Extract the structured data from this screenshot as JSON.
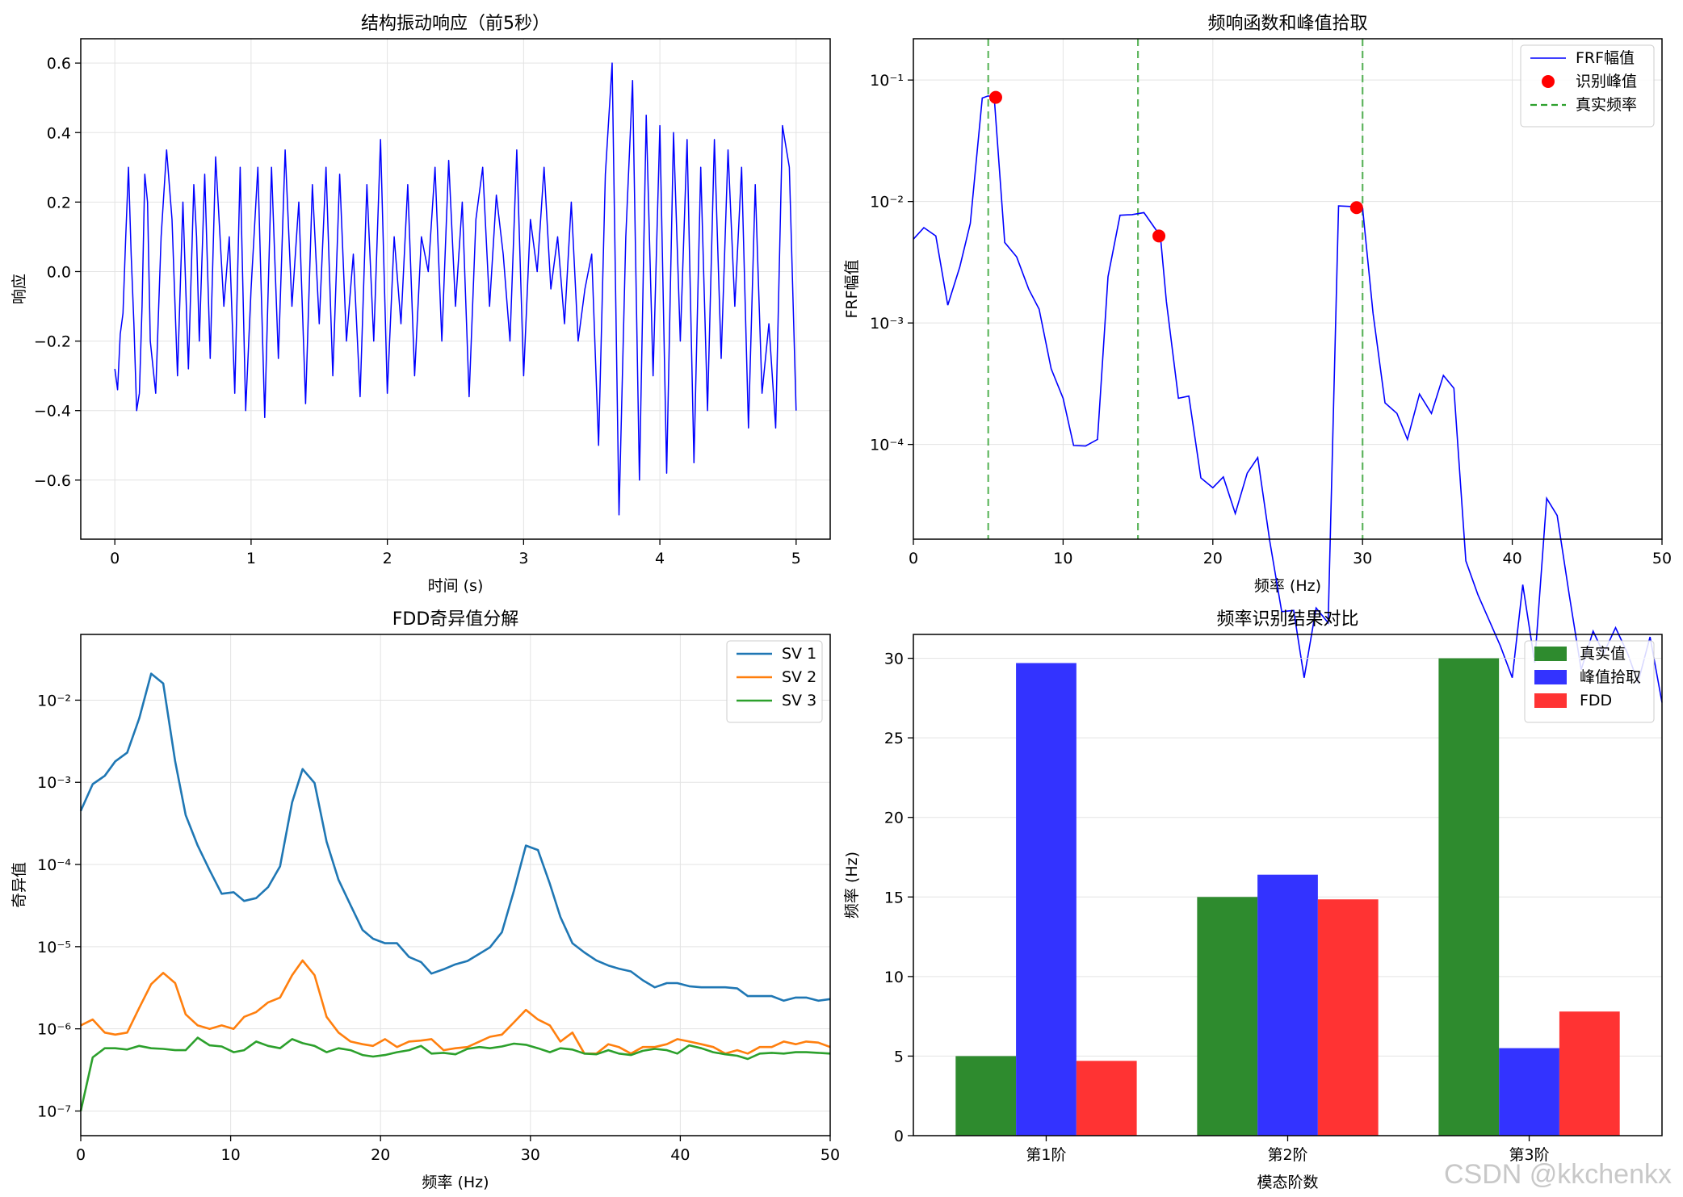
{
  "watermark": "CSDN @kkchenkx",
  "chart_data": [
    {
      "id": "response",
      "type": "line",
      "title": "结构振动响应（前5秒）",
      "xlabel": "时间 (s)",
      "ylabel": "响应",
      "xlim": [
        -0.25,
        5.25
      ],
      "ylim": [
        -0.77,
        0.67
      ],
      "xticks": [
        0,
        1,
        2,
        3,
        4,
        5
      ],
      "yticks": [
        -0.6,
        -0.4,
        -0.2,
        0.0,
        0.2,
        0.4,
        0.6
      ],
      "ytick_labels": [
        "−0.6",
        "−0.4",
        "−0.2",
        "0.0",
        "0.2",
        "0.4",
        "0.6"
      ],
      "grid": true,
      "series": [
        {
          "name": "response",
          "color": "#0000ff",
          "x": [
            0.0,
            0.02,
            0.04,
            0.06,
            0.08,
            0.1,
            0.12,
            0.14,
            0.16,
            0.18,
            0.2,
            0.22,
            0.24,
            0.26,
            0.3,
            0.34,
            0.38,
            0.42,
            0.46,
            0.5,
            0.54,
            0.58,
            0.6,
            0.62,
            0.66,
            0.7,
            0.74,
            0.8,
            0.84,
            0.88,
            0.92,
            0.96,
            1.0,
            1.05,
            1.1,
            1.15,
            1.2,
            1.25,
            1.3,
            1.35,
            1.4,
            1.45,
            1.5,
            1.55,
            1.6,
            1.65,
            1.7,
            1.75,
            1.8,
            1.85,
            1.9,
            1.95,
            2.0,
            2.05,
            2.1,
            2.15,
            2.2,
            2.25,
            2.3,
            2.35,
            2.4,
            2.45,
            2.5,
            2.55,
            2.6,
            2.65,
            2.7,
            2.75,
            2.8,
            2.85,
            2.9,
            2.95,
            3.0,
            3.05,
            3.1,
            3.15,
            3.2,
            3.25,
            3.3,
            3.35,
            3.4,
            3.45,
            3.5,
            3.55,
            3.6,
            3.65,
            3.7,
            3.75,
            3.8,
            3.85,
            3.9,
            3.95,
            4.0,
            4.05,
            4.1,
            4.15,
            4.2,
            4.25,
            4.3,
            4.35,
            4.4,
            4.45,
            4.5,
            4.55,
            4.6,
            4.65,
            4.7,
            4.75,
            4.8,
            4.85,
            4.9,
            4.95,
            5.0
          ],
          "y": [
            -0.28,
            -0.34,
            -0.18,
            -0.12,
            0.1,
            0.3,
            0.05,
            -0.15,
            -0.4,
            -0.35,
            -0.1,
            0.28,
            0.2,
            -0.2,
            -0.35,
            0.1,
            0.35,
            0.15,
            -0.3,
            0.2,
            -0.28,
            0.25,
            0.1,
            -0.2,
            0.28,
            -0.25,
            0.33,
            -0.1,
            0.1,
            -0.35,
            0.3,
            -0.4,
            -0.05,
            0.3,
            -0.42,
            0.3,
            -0.25,
            0.35,
            -0.1,
            0.2,
            -0.38,
            0.25,
            -0.15,
            0.3,
            -0.3,
            0.28,
            -0.2,
            0.05,
            -0.36,
            0.25,
            -0.2,
            0.38,
            -0.35,
            0.1,
            -0.15,
            0.25,
            -0.3,
            0.1,
            0.0,
            0.3,
            -0.2,
            0.32,
            -0.1,
            0.2,
            -0.36,
            0.15,
            0.3,
            -0.1,
            0.22,
            0.05,
            -0.2,
            0.35,
            -0.3,
            0.15,
            0.0,
            0.3,
            -0.05,
            0.1,
            -0.15,
            0.2,
            -0.2,
            -0.05,
            0.05,
            -0.5,
            0.28,
            0.6,
            -0.7,
            0.1,
            0.55,
            -0.6,
            0.45,
            -0.3,
            0.42,
            -0.58,
            0.4,
            -0.2,
            0.38,
            -0.55,
            0.3,
            -0.4,
            0.38,
            -0.25,
            0.35,
            -0.1,
            0.3,
            -0.45,
            0.25,
            -0.35,
            -0.15,
            -0.45,
            0.42,
            0.3,
            -0.4
          ]
        }
      ]
    },
    {
      "id": "frf",
      "type": "line",
      "yscale": "log",
      "title": "频响函数和峰值拾取",
      "xlabel": "频率 (Hz)",
      "ylabel": "FRF幅值",
      "xlim": [
        0,
        50
      ],
      "ylim_log10": [
        -4.78,
        -0.66
      ],
      "xticks": [
        0,
        10,
        20,
        30,
        40,
        50
      ],
      "ytick_exponents": [
        -1,
        -2,
        -3,
        -4
      ],
      "ytick_labels": [
        "10⁻¹",
        "10⁻²",
        "10⁻³",
        "10⁻⁴"
      ],
      "grid": true,
      "legend": {
        "position": "top-right",
        "entries": [
          "FRF幅值",
          "识别峰值",
          "真实频率"
        ]
      },
      "series": [
        {
          "name": "FRF幅值",
          "color": "#0000ff",
          "x": [
            0,
            0.7,
            1.5,
            2.3,
            3.1,
            3.8,
            4.6,
            5.0,
            5.4,
            6.1,
            6.9,
            7.7,
            8.4,
            9.2,
            10.0,
            10.7,
            11.5,
            12.3,
            13.0,
            13.8,
            14.6,
            15.4,
            16.1,
            16.5,
            16.9,
            17.7,
            18.4,
            19.2,
            20.0,
            20.7,
            21.5,
            22.3,
            23.0,
            23.8,
            24.6,
            25.4,
            26.1,
            26.9,
            27.7,
            28.4,
            29.2,
            30.0,
            30.7,
            31.5,
            32.3,
            33.0,
            33.8,
            34.6,
            35.4,
            36.1,
            36.9,
            37.7,
            38.4,
            39.2,
            40.0,
            40.7,
            41.5,
            42.3,
            43.0,
            43.8,
            44.6,
            45.4,
            46.1,
            46.9,
            47.7,
            48.4,
            49.2,
            50.0
          ],
          "y": [
            0.0049,
            0.0061,
            0.0052,
            0.0014,
            0.0029,
            0.0066,
            0.071,
            0.074,
            0.072,
            0.0046,
            0.0035,
            0.0019,
            0.0013,
            0.00042,
            0.00024,
            9.8e-05,
            9.7e-05,
            0.00011,
            0.0024,
            0.0077,
            0.0078,
            0.0081,
            0.0061,
            0.0052,
            0.0015,
            0.00024,
            0.00025,
            5.3e-05,
            4.4e-05,
            5.4e-05,
            2.7e-05,
            5.8e-05,
            7.8e-05,
            1.6e-05,
            4.2e-06,
            4.3e-06,
            1.2e-06,
            4.5e-06,
            3.4e-06,
            0.0092,
            0.0091,
            0.0089,
            0.0012,
            0.00022,
            0.00018,
            0.00011,
            0.00026,
            0.00018,
            0.00037,
            0.00029,
            1.1e-05,
            5.8e-06,
            3.7e-06,
            2.2e-06,
            1.2e-06,
            7e-06,
            1.6e-06,
            3.6e-05,
            2.6e-05,
            5.8e-06,
            1.4e-06,
            2.9e-06,
            1.9e-06,
            3.1e-06,
            1.9e-06,
            1.1e-06,
            2.6e-06,
            7.5e-07
          ]
        },
        {
          "name": "识别峰值",
          "color": "#ff0000",
          "marker": "o",
          "x": [
            5.5,
            16.4,
            29.6
          ],
          "y": [
            0.072,
            0.0052,
            0.0089
          ]
        },
        {
          "name": "真实频率",
          "color": "#2ca02c",
          "style": "dashed",
          "vlines": [
            5,
            15,
            30
          ]
        }
      ]
    },
    {
      "id": "fdd",
      "type": "line",
      "yscale": "log",
      "title": "FDD奇异值分解",
      "xlabel": "频率 (Hz)",
      "ylabel": "奇异值",
      "xlim": [
        0,
        50
      ],
      "ylim_log10": [
        -7.3,
        -1.2
      ],
      "xticks": [
        0,
        10,
        20,
        30,
        40,
        50
      ],
      "ytick_exponents": [
        -2,
        -3,
        -4,
        -5,
        -6,
        -7
      ],
      "ytick_labels": [
        "10⁻²",
        "10⁻³",
        "10⁻⁴",
        "10⁻⁵",
        "10⁻⁶",
        "10⁻⁷"
      ],
      "grid": true,
      "legend": {
        "position": "top-right",
        "entries": [
          "SV 1",
          "SV 2",
          "SV 3"
        ]
      },
      "series": [
        {
          "name": "SV 1",
          "color": "#1f77b4",
          "x": [
            0,
            0.8,
            1.6,
            2.3,
            3.1,
            3.9,
            4.7,
            5.5,
            6.3,
            7.0,
            7.8,
            8.6,
            9.4,
            10.2,
            10.9,
            11.7,
            12.5,
            13.3,
            14.1,
            14.8,
            15.6,
            16.4,
            17.2,
            18.0,
            18.8,
            19.5,
            20.3,
            21.1,
            21.9,
            22.7,
            23.4,
            24.2,
            25.0,
            25.8,
            26.6,
            27.3,
            28.1,
            28.9,
            29.7,
            30.5,
            31.3,
            32.0,
            32.8,
            33.6,
            34.4,
            35.2,
            35.9,
            36.7,
            37.5,
            38.3,
            39.1,
            39.8,
            40.6,
            41.4,
            42.2,
            43.0,
            43.8,
            44.5,
            45.3,
            46.1,
            46.9,
            47.7,
            48.4,
            49.2,
            50.0
          ],
          "y": [
            0.00045,
            0.00095,
            0.0012,
            0.0018,
            0.0023,
            0.006,
            0.021,
            0.016,
            0.0018,
            0.0004,
            0.00017,
            8.5e-05,
            4.4e-05,
            4.6e-05,
            3.6e-05,
            3.9e-05,
            5.3e-05,
            9.5e-05,
            0.00057,
            0.00145,
            0.00098,
            0.00019,
            6.5e-05,
            3.2e-05,
            1.6e-05,
            1.25e-05,
            1.1e-05,
            1.1e-05,
            7.5e-06,
            6.5e-06,
            4.7e-06,
            5.3e-06,
            6.1e-06,
            6.7e-06,
            8.2e-06,
            9.8e-06,
            1.5e-05,
            4.8e-05,
            0.00017,
            0.00015,
            5.8e-05,
            2.3e-05,
            1.1e-05,
            8.5e-06,
            6.8e-06,
            5.9e-06,
            5.4e-06,
            5e-06,
            3.9e-06,
            3.2e-06,
            3.6e-06,
            3.6e-06,
            3.3e-06,
            3.2e-06,
            3.2e-06,
            3.2e-06,
            3.1e-06,
            2.5e-06,
            2.5e-06,
            2.5e-06,
            2.2e-06,
            2.4e-06,
            2.4e-06,
            2.2e-06,
            2.3e-06
          ]
        },
        {
          "name": "SV 2",
          "color": "#ff7f0e",
          "x": [
            0,
            0.8,
            1.6,
            2.3,
            3.1,
            3.9,
            4.7,
            5.5,
            6.3,
            7.0,
            7.8,
            8.6,
            9.4,
            10.2,
            10.9,
            11.7,
            12.5,
            13.3,
            14.1,
            14.8,
            15.6,
            16.4,
            17.2,
            18.0,
            18.8,
            19.5,
            20.3,
            21.1,
            21.9,
            22.7,
            23.4,
            24.2,
            25.0,
            25.8,
            26.6,
            27.3,
            28.1,
            28.9,
            29.7,
            30.5,
            31.3,
            32.0,
            32.8,
            33.6,
            34.4,
            35.2,
            35.9,
            36.7,
            37.5,
            38.3,
            39.1,
            39.8,
            40.6,
            41.4,
            42.2,
            43.0,
            43.8,
            44.5,
            45.3,
            46.1,
            46.9,
            47.7,
            48.4,
            49.2,
            50.0
          ],
          "y": [
            1.1e-06,
            1.3e-06,
            9e-07,
            8.5e-07,
            9e-07,
            1.8e-06,
            3.5e-06,
            4.8e-06,
            3.6e-06,
            1.5e-06,
            1.1e-06,
            1e-06,
            1.1e-06,
            1e-06,
            1.4e-06,
            1.6e-06,
            2.1e-06,
            2.4e-06,
            4.5e-06,
            6.8e-06,
            4.5e-06,
            1.4e-06,
            9e-07,
            7e-07,
            6.5e-07,
            6.2e-07,
            7.5e-07,
            6e-07,
            7e-07,
            7.2e-07,
            7.5e-07,
            5.5e-07,
            5.8e-07,
            6e-07,
            7e-07,
            8e-07,
            8.5e-07,
            1.2e-06,
            1.7e-06,
            1.3e-06,
            1.1e-06,
            7e-07,
            9e-07,
            5e-07,
            5e-07,
            6.5e-07,
            6e-07,
            5e-07,
            6e-07,
            6e-07,
            6.5e-07,
            7.5e-07,
            7e-07,
            6.5e-07,
            6e-07,
            5e-07,
            5.5e-07,
            5e-07,
            6e-07,
            6e-07,
            7e-07,
            6.5e-07,
            7e-07,
            6.8e-07,
            6e-07
          ]
        },
        {
          "name": "SV 3",
          "color": "#2ca02c",
          "x": [
            0,
            0.8,
            1.6,
            2.3,
            3.1,
            3.9,
            4.7,
            5.5,
            6.3,
            7.0,
            7.8,
            8.6,
            9.4,
            10.2,
            10.9,
            11.7,
            12.5,
            13.3,
            14.1,
            14.8,
            15.6,
            16.4,
            17.2,
            18.0,
            18.8,
            19.5,
            20.3,
            21.1,
            21.9,
            22.7,
            23.4,
            24.2,
            25.0,
            25.8,
            26.6,
            27.3,
            28.1,
            28.9,
            29.7,
            30.5,
            31.3,
            32.0,
            32.8,
            33.6,
            34.4,
            35.2,
            35.9,
            36.7,
            37.5,
            38.3,
            39.1,
            39.8,
            40.6,
            41.4,
            42.2,
            43.0,
            43.8,
            44.5,
            45.3,
            46.1,
            46.9,
            47.7,
            48.4,
            49.2,
            50.0
          ],
          "y": [
            1e-07,
            4.5e-07,
            5.8e-07,
            5.8e-07,
            5.6e-07,
            6.2e-07,
            5.8e-07,
            5.7e-07,
            5.5e-07,
            5.5e-07,
            7.8e-07,
            6.3e-07,
            6.1e-07,
            5.2e-07,
            5.5e-07,
            7e-07,
            6.2e-07,
            5.8e-07,
            7.5e-07,
            6.7e-07,
            6.2e-07,
            5.2e-07,
            5.8e-07,
            5.5e-07,
            4.8e-07,
            4.6e-07,
            4.8e-07,
            5.2e-07,
            5.5e-07,
            6.2e-07,
            5e-07,
            5.1e-07,
            4.9e-07,
            5.7e-07,
            6e-07,
            5.8e-07,
            6.1e-07,
            6.6e-07,
            6.4e-07,
            5.8e-07,
            5.2e-07,
            5.8e-07,
            5.6e-07,
            5e-07,
            4.9e-07,
            5.5e-07,
            5e-07,
            4.8e-07,
            5.4e-07,
            5.7e-07,
            5.5e-07,
            5e-07,
            6.3e-07,
            5.8e-07,
            5.2e-07,
            4.9e-07,
            4.7e-07,
            4.3e-07,
            5e-07,
            5.1e-07,
            5e-07,
            5.2e-07,
            5.2e-07,
            5.1e-07,
            5e-07
          ]
        }
      ]
    },
    {
      "id": "compare",
      "type": "bar",
      "title": "频率识别结果对比",
      "xlabel": "模态阶数",
      "ylabel": "频率 (Hz)",
      "ylim": [
        0,
        31.5
      ],
      "yticks": [
        0,
        5,
        10,
        15,
        20,
        25,
        30
      ],
      "categories": [
        "第1阶",
        "第2阶",
        "第3阶"
      ],
      "grid": true,
      "legend": {
        "position": "top-right",
        "entries": [
          "真实值",
          "峰值拾取",
          "FDD"
        ]
      },
      "series": [
        {
          "name": "真实值",
          "color": "#2e8b2e",
          "values": [
            5.0,
            15.0,
            30.0
          ]
        },
        {
          "name": "峰值拾取",
          "color": "#3333ff",
          "values": [
            29.7,
            16.4,
            5.5
          ]
        },
        {
          "name": "FDD",
          "color": "#ff3333",
          "values": [
            4.7,
            14.85,
            7.8
          ]
        }
      ]
    }
  ]
}
